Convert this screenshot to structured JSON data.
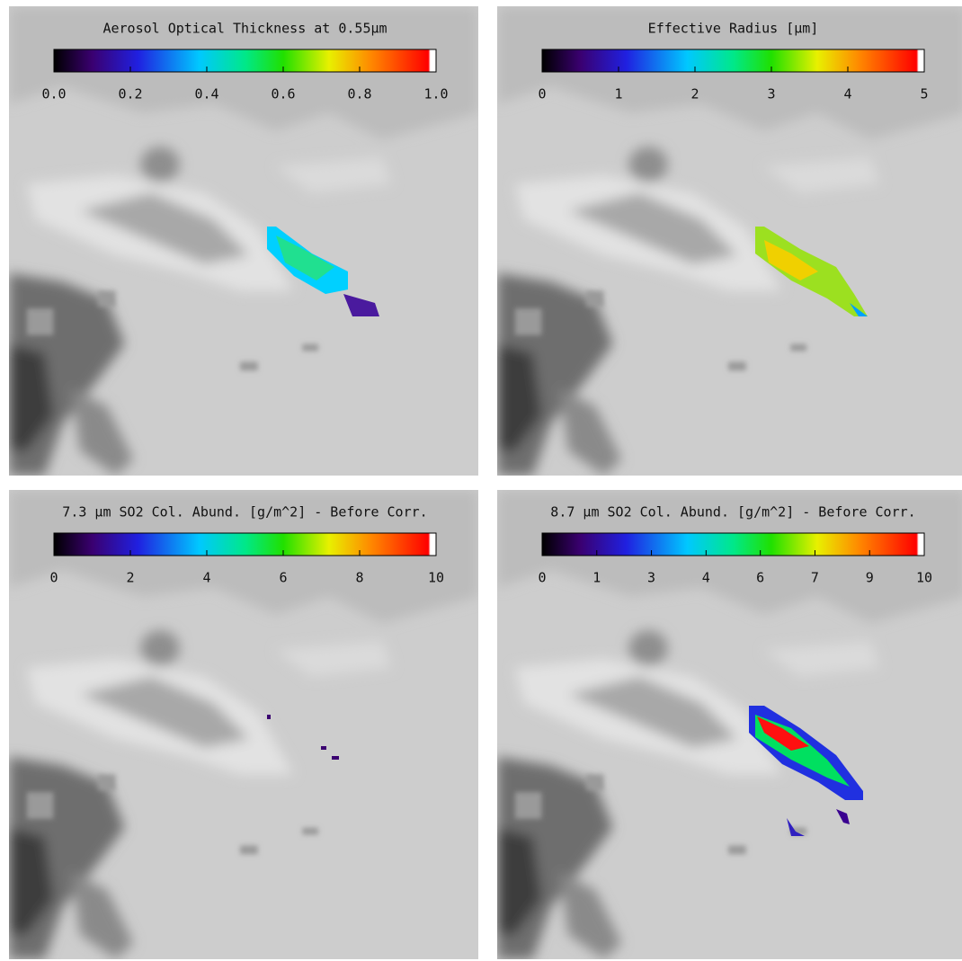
{
  "chart_data": [
    {
      "type": "colorbar",
      "title": "Aerosol Optical Thickness at 0.55µm",
      "xlim": [
        0,
        1
      ],
      "xticks": [
        {
          "value": 0,
          "label": "0.0"
        },
        {
          "value": 0.2,
          "label": "0.2"
        },
        {
          "value": 0.4,
          "label": "0.4"
        },
        {
          "value": 0.6,
          "label": "0.6"
        },
        {
          "value": 0.8,
          "label": "0.8"
        },
        {
          "value": 1,
          "label": "1.0"
        }
      ]
    },
    {
      "type": "colorbar",
      "title": "Effective Radius  [µm]",
      "xlim": [
        0,
        5
      ],
      "xticks": [
        0,
        1,
        2,
        3,
        4,
        5
      ]
    },
    {
      "type": "colorbar",
      "title": "7.3 µm SO2 Col. Abund. [g/m^2] - Before Corr.",
      "xlim": [
        0,
        10
      ],
      "xticks": [
        0,
        2,
        4,
        6,
        8,
        10
      ]
    },
    {
      "type": "colorbar",
      "title": "8.7 µm SO2 Col. Abund. [g/m^2] - Before Corr.",
      "xlim": [
        0,
        10
      ],
      "xticks": [
        0,
        {
          "value": 1.43,
          "label": "1"
        },
        {
          "value": 2.86,
          "label": "3"
        },
        {
          "value": 4.29,
          "label": "4"
        },
        {
          "value": 5.71,
          "label": "6"
        },
        {
          "value": 7.14,
          "label": "7"
        },
        {
          "value": 8.57,
          "label": "9"
        },
        10
      ]
    }
  ]
}
